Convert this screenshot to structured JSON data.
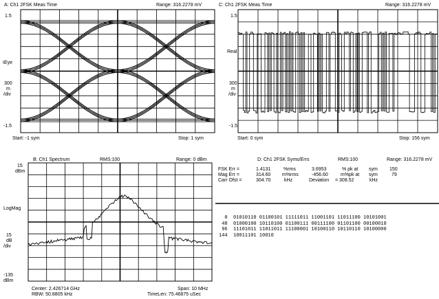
{
  "panelA": {
    "title": "A: Ch1 2FSK Meas Time",
    "range": "Range: 316.2278 mV",
    "y_top": "1.5",
    "y_name": "IEye",
    "scale_val": "300",
    "scale_unit": "m",
    "scale_div": "/div",
    "y_bottom": "-1.5",
    "start": "Start: -1 sym",
    "stop": "Stop: 1 sym"
  },
  "panelC": {
    "title": "C: Ch1 2FSK Meas Time",
    "range": "Range: 316.2278 mV",
    "y_top": "1.5",
    "y_name": "Real",
    "scale_val": "300",
    "scale_unit": "m",
    "scale_div": "/div",
    "y_bottom": "-1.5",
    "start": "Start: 0 sym",
    "stop": "Stop: 156 sym"
  },
  "panelB": {
    "title": "B: Ch1 Spectrum",
    "rms": "RMS:100",
    "range": "Range: 0 dBm",
    "y_top": "15",
    "y_top_unit": "dBm",
    "y_name": "LogMag",
    "scale_val": "15",
    "scale_unit": "dB",
    "scale_div": "/div",
    "y_bottom": "-135",
    "y_bottom_unit": "dBm",
    "center": "Center: 2.426714 GHz",
    "span": "Span: 10 MHz",
    "rbw": "RBW: 50.8805 kHz",
    "timelen": "TimeLen: 75.46875 uSec"
  },
  "panelD": {
    "title": "D: Ch1 2FSK Syms/Errs",
    "rms": "RMS:100",
    "range": "Range: 316.2278 mV",
    "rows": [
      [
        "FSK Err =",
        "1.4131",
        "%rms",
        "3.6953",
        "% pk at",
        "sym",
        "150",
        ""
      ],
      [
        "Mag Err =",
        "314.60",
        "m%rms",
        "-456.60",
        "m%pk at",
        "sym",
        "79",
        ""
      ],
      [
        "Carr Ofst =",
        "304.70",
        "kHz",
        "Deviation",
        "= 308.52",
        "kHz",
        "",
        ""
      ]
    ],
    "bits": [
      "  0  01010110 01100101 11111011 11001101 11011100 10101001",
      " 48  01000100 10110100 01100111 00111100 01101100 00100010",
      " 96  11101011 11011011 11100001 10100110 10110110 10100000",
      "144  10011101 10010"
    ]
  }
}
